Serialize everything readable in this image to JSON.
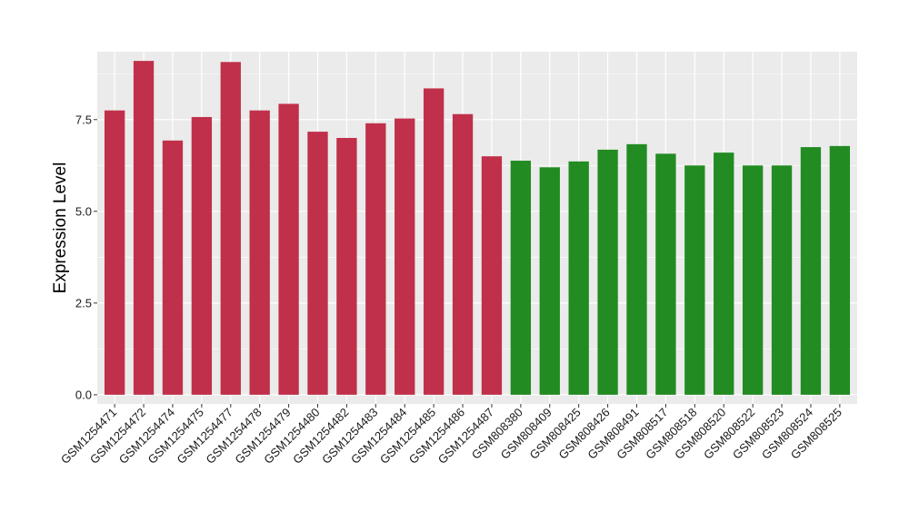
{
  "chart_data": {
    "type": "bar",
    "ylabel": "Expression Level",
    "ylim": [
      -0.25,
      9.35
    ],
    "y_ticks": [
      0.0,
      2.5,
      5.0,
      7.5
    ],
    "y_tick_labels": [
      "0.0",
      "2.5",
      "5.0",
      "7.5"
    ],
    "grid": true,
    "categories": [
      "GSM1254471",
      "GSM1254472",
      "GSM1254474",
      "GSM1254475",
      "GSM1254477",
      "GSM1254478",
      "GSM1254479",
      "GSM1254480",
      "GSM1254482",
      "GSM1254483",
      "GSM1254484",
      "GSM1254485",
      "GSM1254486",
      "GSM1254487",
      "GSM808380",
      "GSM808409",
      "GSM808425",
      "GSM808426",
      "GSM808491",
      "GSM808517",
      "GSM808518",
      "GSM808520",
      "GSM808522",
      "GSM808523",
      "GSM808524",
      "GSM808525"
    ],
    "values": [
      7.75,
      9.1,
      6.93,
      7.57,
      9.07,
      7.75,
      7.93,
      7.17,
      7.0,
      7.4,
      7.53,
      8.35,
      7.65,
      6.5,
      6.38,
      6.2,
      6.36,
      6.68,
      6.83,
      6.57,
      6.25,
      6.6,
      6.25,
      6.25,
      6.75,
      6.78
    ],
    "colors": [
      "#c0304a",
      "#c0304a",
      "#c0304a",
      "#c0304a",
      "#c0304a",
      "#c0304a",
      "#c0304a",
      "#c0304a",
      "#c0304a",
      "#c0304a",
      "#c0304a",
      "#c0304a",
      "#c0304a",
      "#c0304a",
      "#228b22",
      "#228b22",
      "#228b22",
      "#228b22",
      "#228b22",
      "#228b22",
      "#228b22",
      "#228b22",
      "#228b22",
      "#228b22",
      "#228b22",
      "#228b22"
    ],
    "panel_background": "#ebebeb",
    "grid_color": "#ffffff"
  }
}
